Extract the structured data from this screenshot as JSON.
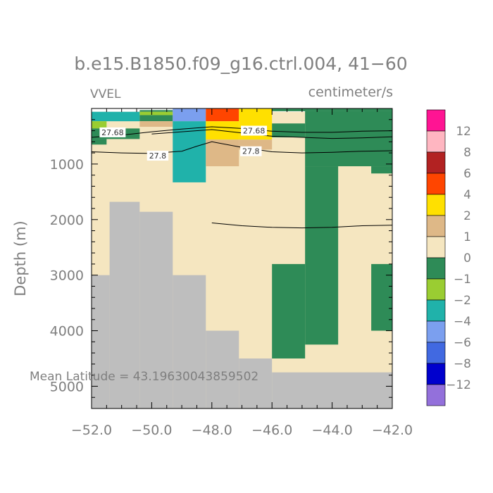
{
  "chart_data": {
    "type": "heatmap",
    "title": "b.e15.B1850.f09_g16.ctrl.004, 41−60",
    "variable": "VVEL",
    "units": "centimeter/s",
    "ylabel": "Depth (m)",
    "xlabel": "",
    "xlim": [
      -52.0,
      -42.0
    ],
    "ylim": [
      5400,
      0
    ],
    "y_reversed": true,
    "x_ticks": [
      -52.0,
      -50.0,
      -48.0,
      -46.0,
      -44.0,
      -42.0
    ],
    "x_tick_labels": [
      "−52.0",
      "−50.0",
      "−48.0",
      "−46.0",
      "−44.0",
      "−42.0"
    ],
    "y_ticks": [
      1000,
      2000,
      3000,
      4000,
      5000
    ],
    "y_tick_labels": [
      "1000",
      "2000",
      "3000",
      "4000",
      "5000"
    ],
    "annotation": "Mean Latitude = 43.19630043859502",
    "grid": false,
    "legend_placement": "right",
    "colorbar": {
      "labels": [
        "12",
        "8",
        "6",
        "4",
        "2",
        "1",
        "0",
        "−1",
        "−2",
        "−4",
        "−6",
        "−8",
        "−12"
      ],
      "colors": [
        "#ff1493",
        "#ffb6c1",
        "#b22222",
        "#ff4500",
        "#ffe000",
        "#deb887",
        "#f5e6c0",
        "#2e8b57",
        "#9acd32",
        "#20b2aa",
        "#7b9fef",
        "#4169e1",
        "#0000cd",
        "#9370db"
      ]
    },
    "land_color": "#bebebe",
    "cells": [
      {
        "x0": -52.0,
        "x1": -42.0,
        "y0": 60,
        "y1": 5400,
        "value": "0",
        "color": "#f5e6c0"
      },
      {
        "x0": -52.0,
        "x1": -50.4,
        "y0": 60,
        "y1": 230,
        "value": "−2",
        "color": "#20b2aa"
      },
      {
        "x0": -52.0,
        "x1": -51.5,
        "y0": 230,
        "y1": 360,
        "value": "−1",
        "color": "#9acd32"
      },
      {
        "x0": -52.0,
        "x1": -50.4,
        "y0": 360,
        "y1": 550,
        "value": "−1",
        "color": "#2e8b57"
      },
      {
        "x0": -52.0,
        "x1": -51.5,
        "y0": 550,
        "y1": 650,
        "value": "−1",
        "color": "#2e8b57"
      },
      {
        "x0": -50.4,
        "x1": -49.3,
        "y0": 30,
        "y1": 60,
        "value": "−1",
        "color": "#2e8b57"
      },
      {
        "x0": -50.4,
        "x1": -49.3,
        "y0": 60,
        "y1": 120,
        "value": "−1",
        "color": "#9acd32"
      },
      {
        "x0": -50.4,
        "x1": -49.3,
        "y0": 120,
        "y1": 230,
        "value": "−1",
        "color": "#2e8b57"
      },
      {
        "x0": -50.4,
        "x1": -49.3,
        "y0": 230,
        "y1": 330,
        "value": "1",
        "color": "#deb887"
      },
      {
        "x0": -49.3,
        "x1": -48.2,
        "y0": 0,
        "y1": 230,
        "value": "−4",
        "color": "#7b9fef"
      },
      {
        "x0": -49.3,
        "x1": -48.2,
        "y0": 230,
        "y1": 1330,
        "value": "−2",
        "color": "#20b2aa"
      },
      {
        "x0": -48.2,
        "x1": -47.1,
        "y0": 0,
        "y1": 230,
        "value": "4",
        "color": "#ff4500"
      },
      {
        "x0": -48.2,
        "x1": -47.1,
        "y0": 230,
        "y1": 560,
        "value": "2",
        "color": "#ffe000"
      },
      {
        "x0": -48.2,
        "x1": -47.1,
        "y0": 560,
        "y1": 1040,
        "value": "1",
        "color": "#deb887"
      },
      {
        "x0": -47.1,
        "x1": -46.0,
        "y0": 0,
        "y1": 560,
        "value": "2",
        "color": "#ffe000"
      },
      {
        "x0": -47.1,
        "x1": -46.0,
        "y0": 560,
        "y1": 740,
        "value": "1",
        "color": "#deb887"
      },
      {
        "x0": -46.0,
        "x1": -42.0,
        "y0": 0,
        "y1": 50,
        "value": "−1",
        "color": "#2e8b57"
      },
      {
        "x0": -46.0,
        "x1": -44.9,
        "y0": 270,
        "y1": 520,
        "value": "−1",
        "color": "#2e8b57"
      },
      {
        "x0": -44.9,
        "x1": -42.0,
        "y0": 50,
        "y1": 1040,
        "value": "−1",
        "color": "#2e8b57"
      },
      {
        "x0": -42.7,
        "x1": -42.0,
        "y0": 1040,
        "y1": 1170,
        "value": "−1",
        "color": "#2e8b57"
      },
      {
        "x0": -44.9,
        "x1": -43.8,
        "y0": 1040,
        "y1": 4250,
        "value": "−1",
        "color": "#2e8b57"
      },
      {
        "x0": -46.0,
        "x1": -44.9,
        "y0": 2800,
        "y1": 4500,
        "value": "−1",
        "color": "#2e8b57"
      },
      {
        "x0": -42.7,
        "x1": -42.0,
        "y0": 2800,
        "y1": 4000,
        "value": "−1",
        "color": "#2e8b57"
      }
    ],
    "land": [
      {
        "x0": -52.0,
        "x1": -51.4,
        "y0": 3000,
        "y1": 5400
      },
      {
        "x0": -51.4,
        "x1": -50.4,
        "y0": 1680,
        "y1": 5400
      },
      {
        "x0": -50.4,
        "x1": -49.3,
        "y0": 1860,
        "y1": 5400
      },
      {
        "x0": -49.3,
        "x1": -48.2,
        "y0": 3000,
        "y1": 5400
      },
      {
        "x0": -48.2,
        "x1": -47.1,
        "y0": 4000,
        "y1": 5400
      },
      {
        "x0": -47.1,
        "x1": -46.0,
        "y0": 4500,
        "y1": 5400
      },
      {
        "x0": -46.0,
        "x1": -42.0,
        "y0": 4750,
        "y1": 5400
      }
    ],
    "contours": [
      {
        "label": "27.68",
        "points": [
          [
            -52.0,
            520
          ],
          [
            -51.0,
            480
          ],
          [
            -50.0,
            420
          ],
          [
            -49.0,
            370
          ],
          [
            -48.0,
            330
          ],
          [
            -47.0,
            360
          ],
          [
            -46.0,
            410
          ],
          [
            -45.0,
            430
          ],
          [
            -44.0,
            430
          ],
          [
            -43.0,
            410
          ],
          [
            -42.0,
            400
          ]
        ]
      },
      {
        "label": "27.68",
        "points": [
          [
            -50.0,
            460
          ],
          [
            -49.0,
            420
          ],
          [
            -48.0,
            380
          ],
          [
            -47.0,
            440
          ],
          [
            -46.0,
            500
          ],
          [
            -45.0,
            520
          ],
          [
            -44.0,
            540
          ],
          [
            -43.0,
            530
          ],
          [
            -42.0,
            510
          ]
        ]
      },
      {
        "label": "27.8",
        "points": [
          [
            -52.0,
            780
          ],
          [
            -51.0,
            800
          ],
          [
            -50.0,
            810
          ],
          [
            -49.0,
            770
          ],
          [
            -48.5,
            680
          ],
          [
            -48.0,
            600
          ],
          [
            -47.0,
            700
          ],
          [
            -46.0,
            780
          ],
          [
            -45.0,
            800
          ],
          [
            -44.0,
            790
          ],
          [
            -43.0,
            770
          ],
          [
            -42.0,
            760
          ]
        ]
      },
      {
        "label": "",
        "points": [
          [
            -48.0,
            2060
          ],
          [
            -47.0,
            2110
          ],
          [
            -46.0,
            2140
          ],
          [
            -45.0,
            2150
          ],
          [
            -44.0,
            2140
          ],
          [
            -43.0,
            2110
          ],
          [
            -42.0,
            2100
          ]
        ]
      }
    ],
    "contour_labels": [
      {
        "text": "27.68",
        "x": -51.3,
        "y": 430
      },
      {
        "text": "27.68",
        "x": -46.6,
        "y": 400
      },
      {
        "text": "27.8",
        "x": -49.8,
        "y": 850
      },
      {
        "text": "27.8",
        "x": -46.7,
        "y": 770
      }
    ]
  }
}
